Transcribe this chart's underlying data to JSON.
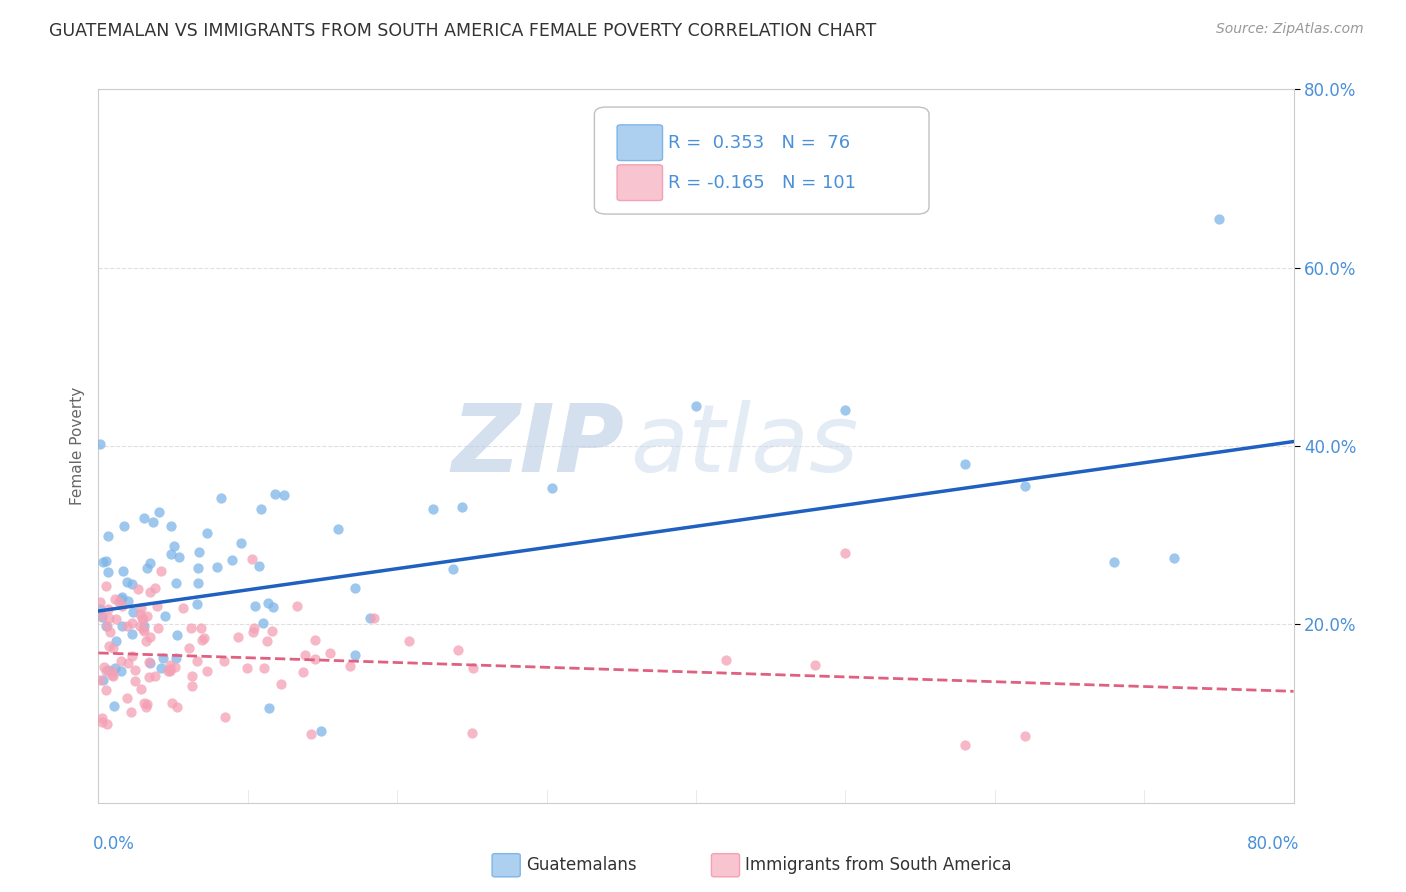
{
  "title": "GUATEMALAN VS IMMIGRANTS FROM SOUTH AMERICA FEMALE POVERTY CORRELATION CHART",
  "source": "Source: ZipAtlas.com",
  "ylabel": "Female Poverty",
  "watermark_zip": "ZIP",
  "watermark_atlas": "atlas",
  "xmin": 0.0,
  "xmax": 0.8,
  "ymin": 0.0,
  "ymax": 0.8,
  "series1": {
    "name": "Guatemalans",
    "scatter_color": "#7eb5e8",
    "fill_color": "#aed0f0",
    "line_color": "#2060c0",
    "R": 0.353,
    "N": 76,
    "trend_y0": 0.215,
    "trend_y1": 0.405
  },
  "series2": {
    "name": "Immigrants from South America",
    "scatter_color": "#f4a0b5",
    "fill_color": "#f8c4d0",
    "line_color": "#e06080",
    "R": -0.165,
    "N": 101,
    "trend_y0": 0.168,
    "trend_y1": 0.125
  },
  "background_color": "#ffffff",
  "grid_color": "#e0e0e0",
  "title_color": "#333333",
  "axis_label_color": "#4a90d9",
  "legend_value_color": "#4a90d9",
  "watermark_color": "#dde8f5",
  "source_color": "#999999"
}
